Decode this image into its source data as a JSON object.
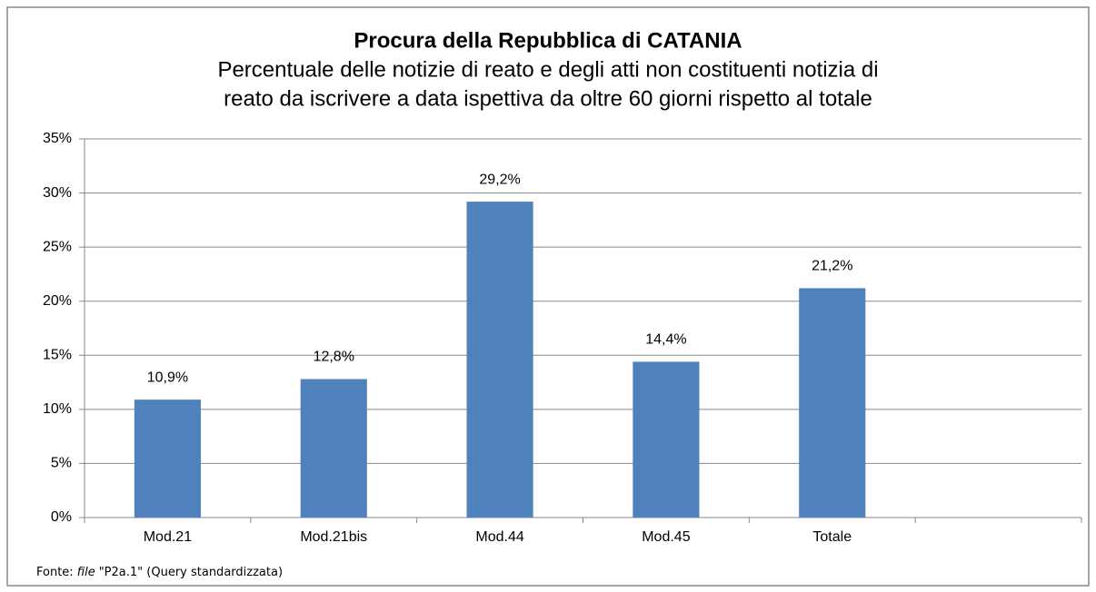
{
  "chart_data": {
    "type": "bar",
    "title": "Procura della Repubblica di CATANIA",
    "subtitle": [
      "Percentuale delle notizie di reato e degli atti non costituenti notizia di",
      "reato da iscrivere a data ispettiva da oltre 60 giorni rispetto al totale"
    ],
    "categories": [
      "Mod.21",
      "Mod.21bis",
      "Mod.44",
      "Mod.45",
      "Totale",
      null
    ],
    "values": [
      10.9,
      12.8,
      29.2,
      14.4,
      21.2,
      null
    ],
    "value_labels": [
      "10,9%",
      "12,8%",
      "29,2%",
      "14,4%",
      "21,2%",
      null
    ],
    "color": "#4f81bd",
    "ylim": [
      0,
      35
    ],
    "yticks": [
      {
        "value": 0,
        "label": "0%"
      },
      {
        "value": 5,
        "label": "5%"
      },
      {
        "value": 10,
        "label": "10%"
      },
      {
        "value": 15,
        "label": "15%"
      },
      {
        "value": 20,
        "label": "20%"
      },
      {
        "value": 25,
        "label": "25%"
      },
      {
        "value": 30,
        "label": "30%"
      },
      {
        "value": 35,
        "label": "35%"
      }
    ],
    "grid": true,
    "source": {
      "prefix": "Fonte:",
      "emphasis": "file",
      "rest": "\"P2a.1\" (Query standardizzata)"
    }
  }
}
